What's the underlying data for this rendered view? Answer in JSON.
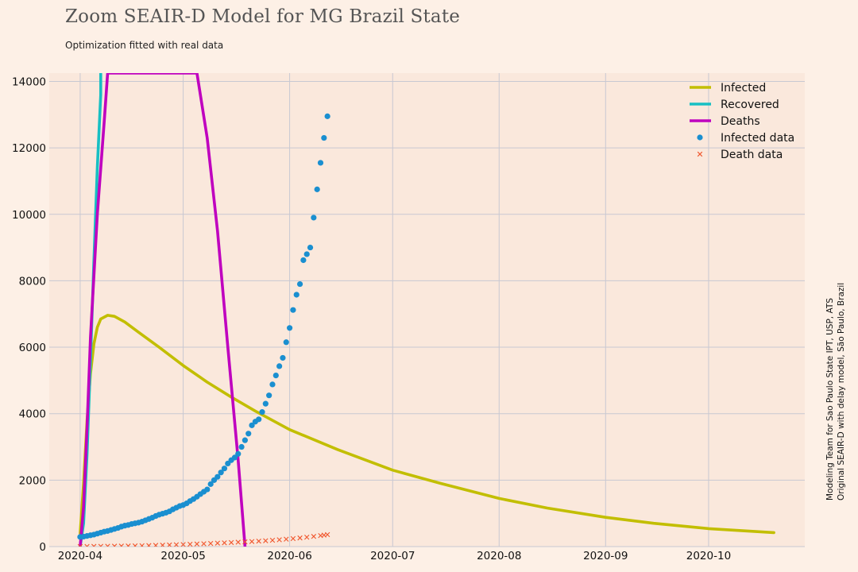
{
  "header": {
    "title": "Zoom SEAIR-D Model for MG Brazil State",
    "subtitle": "Optimization fitted with real data"
  },
  "side_note": {
    "line1": "Modeling Team for Sao Paulo State IPT, USP, ATS",
    "line2": "Original SEAIR-D with delay model, São Paulo, Brazil"
  },
  "colors": {
    "background": "#fdf0e6",
    "plot_background": "#fae8dc",
    "grid": "#c8c8d2",
    "infected": "#c2be00",
    "recovered": "#17bfc3",
    "deaths": "#bf00bf",
    "infected_data": "#1a8fd0",
    "death_data": "#f0552c"
  },
  "chart_data": {
    "type": "line",
    "title": "Zoom SEAIR-D Model for MG Brazil State",
    "subtitle": "Optimization fitted with real data",
    "xlabel": "",
    "ylabel": "",
    "x_is_date": true,
    "xlim": [
      "2020-03-23",
      "2020-10-29"
    ],
    "ylim": [
      0,
      14250
    ],
    "x_ticks": [
      "2020-04-01",
      "2020-05-01",
      "2020-06-01",
      "2020-07-01",
      "2020-08-01",
      "2020-09-01",
      "2020-10-01"
    ],
    "x_tick_labels": [
      "2020-04",
      "2020-05",
      "2020-06",
      "2020-07",
      "2020-08",
      "2020-09",
      "2020-10"
    ],
    "y_ticks": [
      0,
      2000,
      4000,
      6000,
      8000,
      10000,
      12000,
      14000
    ],
    "y_tick_labels": [
      "0",
      "2000",
      "4000",
      "6000",
      "8000",
      "10000",
      "12000",
      "14000"
    ],
    "grid": true,
    "legend_position": "top-right",
    "series": [
      {
        "name": "Infected",
        "kind": "line",
        "color_key": "infected",
        "points": [
          [
            "2020-04-01",
            400
          ],
          [
            "2020-04-02",
            1900
          ],
          [
            "2020-04-03",
            3800
          ],
          [
            "2020-04-04",
            5200
          ],
          [
            "2020-04-05",
            6100
          ],
          [
            "2020-04-06",
            6600
          ],
          [
            "2020-04-07",
            6850
          ],
          [
            "2020-04-09",
            6960
          ],
          [
            "2020-04-11",
            6930
          ],
          [
            "2020-04-14",
            6760
          ],
          [
            "2020-04-18",
            6450
          ],
          [
            "2020-04-24",
            6000
          ],
          [
            "2020-05-01",
            5450
          ],
          [
            "2020-05-08",
            4950
          ],
          [
            "2020-05-15",
            4500
          ],
          [
            "2020-05-22",
            4080
          ],
          [
            "2020-06-01",
            3520
          ],
          [
            "2020-06-15",
            2920
          ],
          [
            "2020-07-01",
            2300
          ],
          [
            "2020-07-15",
            1900
          ],
          [
            "2020-08-01",
            1450
          ],
          [
            "2020-08-15",
            1160
          ],
          [
            "2020-09-01",
            880
          ],
          [
            "2020-09-15",
            700
          ],
          [
            "2020-10-01",
            540
          ],
          [
            "2020-10-20",
            420
          ]
        ]
      },
      {
        "name": "Recovered",
        "kind": "line",
        "color_key": "recovered",
        "points": [
          [
            "2020-04-01",
            0
          ],
          [
            "2020-04-02",
            700
          ],
          [
            "2020-04-03",
            2800
          ],
          [
            "2020-04-04",
            5600
          ],
          [
            "2020-04-05",
            8600
          ],
          [
            "2020-04-06",
            11400
          ],
          [
            "2020-04-07",
            13600
          ],
          [
            "2020-04-07",
            14250
          ]
        ]
      },
      {
        "name": "Deaths",
        "kind": "line",
        "color_key": "deaths",
        "points": [
          [
            "2020-04-01",
            0
          ],
          [
            "2020-04-02",
            1200
          ],
          [
            "2020-04-03",
            3600
          ],
          [
            "2020-04-04",
            6300
          ],
          [
            "2020-04-06",
            10000
          ],
          [
            "2020-04-08",
            12800
          ],
          [
            "2020-04-09",
            14250
          ],
          [
            "2020-05-05",
            14250
          ],
          [
            "2020-05-08",
            12300
          ],
          [
            "2020-05-11",
            9500
          ],
          [
            "2020-05-14",
            6000
          ],
          [
            "2020-05-17",
            2600
          ],
          [
            "2020-05-19",
            0
          ]
        ]
      },
      {
        "name": "Infected data",
        "kind": "scatter",
        "marker": "dot",
        "color_key": "infected_data",
        "points": [
          [
            "2020-04-01",
            290
          ],
          [
            "2020-04-02",
            300
          ],
          [
            "2020-04-03",
            320
          ],
          [
            "2020-04-04",
            340
          ],
          [
            "2020-04-05",
            360
          ],
          [
            "2020-04-06",
            390
          ],
          [
            "2020-04-07",
            420
          ],
          [
            "2020-04-08",
            450
          ],
          [
            "2020-04-09",
            470
          ],
          [
            "2020-04-10",
            500
          ],
          [
            "2020-04-11",
            530
          ],
          [
            "2020-04-12",
            560
          ],
          [
            "2020-04-13",
            600
          ],
          [
            "2020-04-14",
            630
          ],
          [
            "2020-04-15",
            650
          ],
          [
            "2020-04-16",
            680
          ],
          [
            "2020-04-17",
            700
          ],
          [
            "2020-04-18",
            720
          ],
          [
            "2020-04-19",
            750
          ],
          [
            "2020-04-20",
            790
          ],
          [
            "2020-04-21",
            830
          ],
          [
            "2020-04-22",
            870
          ],
          [
            "2020-04-23",
            920
          ],
          [
            "2020-04-24",
            960
          ],
          [
            "2020-04-25",
            990
          ],
          [
            "2020-04-26",
            1020
          ],
          [
            "2020-04-27",
            1060
          ],
          [
            "2020-04-28",
            1120
          ],
          [
            "2020-04-29",
            1170
          ],
          [
            "2020-04-30",
            1220
          ],
          [
            "2020-05-01",
            1250
          ],
          [
            "2020-05-02",
            1300
          ],
          [
            "2020-05-03",
            1370
          ],
          [
            "2020-05-04",
            1430
          ],
          [
            "2020-05-05",
            1500
          ],
          [
            "2020-05-06",
            1580
          ],
          [
            "2020-05-07",
            1650
          ],
          [
            "2020-05-08",
            1720
          ],
          [
            "2020-05-09",
            1880
          ],
          [
            "2020-05-10",
            2000
          ],
          [
            "2020-05-11",
            2100
          ],
          [
            "2020-05-12",
            2230
          ],
          [
            "2020-05-13",
            2350
          ],
          [
            "2020-05-14",
            2500
          ],
          [
            "2020-05-15",
            2600
          ],
          [
            "2020-05-16",
            2680
          ],
          [
            "2020-05-17",
            2790
          ],
          [
            "2020-05-18",
            3000
          ],
          [
            "2020-05-19",
            3200
          ],
          [
            "2020-05-20",
            3400
          ],
          [
            "2020-05-21",
            3650
          ],
          [
            "2020-05-22",
            3760
          ],
          [
            "2020-05-23",
            3830
          ],
          [
            "2020-05-24",
            4050
          ],
          [
            "2020-05-25",
            4300
          ],
          [
            "2020-05-26",
            4550
          ],
          [
            "2020-05-27",
            4880
          ],
          [
            "2020-05-28",
            5150
          ],
          [
            "2020-05-29",
            5430
          ],
          [
            "2020-05-30",
            5680
          ],
          [
            "2020-05-31",
            6150
          ],
          [
            "2020-06-01",
            6580
          ],
          [
            "2020-06-02",
            7120
          ],
          [
            "2020-06-03",
            7580
          ],
          [
            "2020-06-04",
            7900
          ],
          [
            "2020-06-05",
            8620
          ],
          [
            "2020-06-06",
            8800
          ],
          [
            "2020-06-07",
            9000
          ],
          [
            "2020-06-08",
            9900
          ],
          [
            "2020-06-09",
            10750
          ],
          [
            "2020-06-10",
            11550
          ],
          [
            "2020-06-11",
            12300
          ],
          [
            "2020-06-12",
            12950
          ]
        ]
      },
      {
        "name": "Death data",
        "kind": "scatter",
        "marker": "x",
        "color_key": "death_data",
        "points": [
          [
            "2020-04-01",
            2
          ],
          [
            "2020-04-03",
            4
          ],
          [
            "2020-04-05",
            6
          ],
          [
            "2020-04-07",
            8
          ],
          [
            "2020-04-09",
            10
          ],
          [
            "2020-04-11",
            12
          ],
          [
            "2020-04-13",
            15
          ],
          [
            "2020-04-15",
            18
          ],
          [
            "2020-04-17",
            21
          ],
          [
            "2020-04-19",
            25
          ],
          [
            "2020-04-21",
            30
          ],
          [
            "2020-04-23",
            36
          ],
          [
            "2020-04-25",
            42
          ],
          [
            "2020-04-27",
            48
          ],
          [
            "2020-04-29",
            55
          ],
          [
            "2020-05-01",
            62
          ],
          [
            "2020-05-03",
            70
          ],
          [
            "2020-05-05",
            78
          ],
          [
            "2020-05-07",
            86
          ],
          [
            "2020-05-09",
            95
          ],
          [
            "2020-05-11",
            104
          ],
          [
            "2020-05-13",
            113
          ],
          [
            "2020-05-15",
            122
          ],
          [
            "2020-05-17",
            132
          ],
          [
            "2020-05-19",
            142
          ],
          [
            "2020-05-21",
            152
          ],
          [
            "2020-05-23",
            164
          ],
          [
            "2020-05-25",
            176
          ],
          [
            "2020-05-27",
            190
          ],
          [
            "2020-05-29",
            205
          ],
          [
            "2020-05-31",
            222
          ],
          [
            "2020-06-02",
            240
          ],
          [
            "2020-06-04",
            260
          ],
          [
            "2020-06-06",
            282
          ],
          [
            "2020-06-08",
            305
          ],
          [
            "2020-06-10",
            330
          ],
          [
            "2020-06-11",
            345
          ],
          [
            "2020-06-12",
            360
          ]
        ]
      }
    ]
  }
}
